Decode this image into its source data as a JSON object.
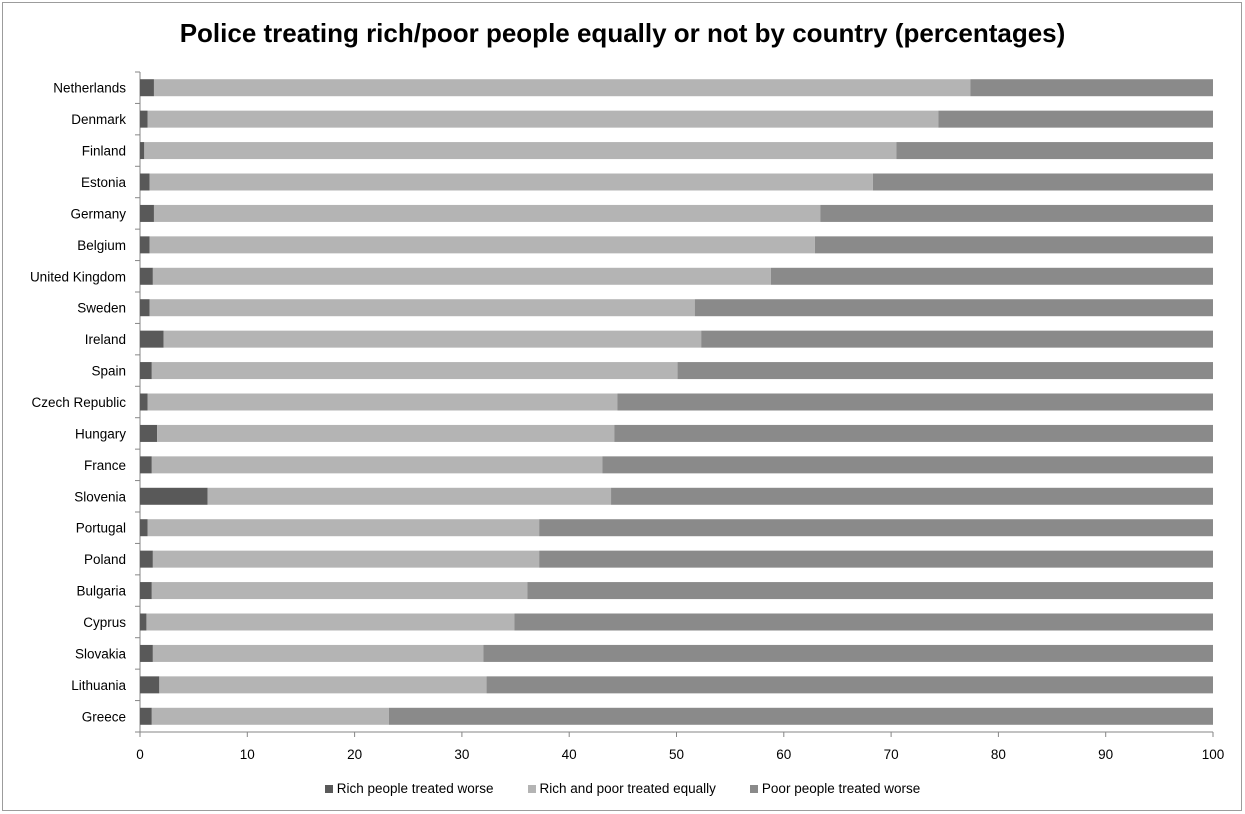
{
  "chart_data": {
    "type": "bar",
    "orientation": "horizontal",
    "stacked": true,
    "title": "Police treating rich/poor people equally or not by country (percentages)",
    "xlabel": "",
    "ylabel": "",
    "xlim": [
      0,
      100
    ],
    "xticks": [
      "0",
      "10",
      "20",
      "30",
      "40",
      "50",
      "60",
      "70",
      "80",
      "90",
      "100"
    ],
    "grid": false,
    "legend_position": "bottom",
    "categories": [
      "Netherlands",
      "Denmark",
      "Finland",
      "Estonia",
      "Germany",
      "Belgium",
      "United Kingdom",
      "Sweden",
      "Ireland",
      "Spain",
      "Czech Republic",
      "Hungary",
      "France",
      "Slovenia",
      "Portugal",
      "Poland",
      "Bulgaria",
      "Cyprus",
      "Slovakia",
      "Lithuania",
      "Greece"
    ],
    "series": [
      {
        "name": "Rich people treated worse",
        "color": "#595959",
        "values": [
          1.3,
          0.7,
          0.4,
          0.9,
          1.3,
          0.9,
          1.2,
          0.9,
          2.2,
          1.1,
          0.7,
          1.6,
          1.1,
          6.3,
          0.7,
          1.2,
          1.1,
          0.6,
          1.2,
          1.8,
          1.1
        ]
      },
      {
        "name": "Rich and poor treated equally",
        "color": "#b4b4b4",
        "values": [
          76.1,
          73.7,
          70.1,
          67.4,
          62.1,
          62.0,
          57.6,
          50.8,
          50.1,
          49.0,
          43.8,
          42.6,
          42.0,
          37.6,
          36.5,
          36.0,
          35.0,
          34.3,
          30.8,
          30.5,
          22.1
        ]
      },
      {
        "name": "Poor people treated worse",
        "color": "#8a8a8a",
        "values": [
          22.6,
          25.6,
          29.5,
          31.7,
          36.6,
          37.1,
          41.2,
          48.3,
          47.7,
          49.9,
          55.5,
          55.8,
          56.9,
          56.1,
          62.8,
          62.8,
          63.9,
          65.1,
          68.0,
          67.7,
          76.8
        ]
      }
    ]
  }
}
